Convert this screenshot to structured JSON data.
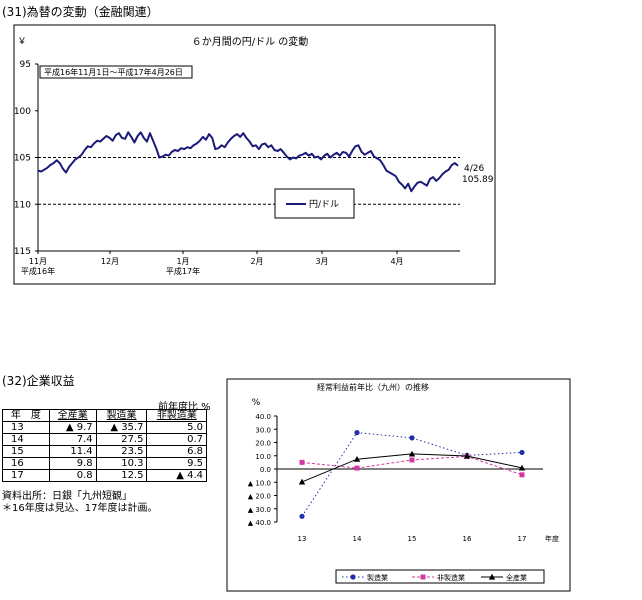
{
  "section1": {
    "title": "(31)為替の変動（金融関連）",
    "chart_data": {
      "type": "line",
      "title": "６か月間の円/ドル の変動",
      "yunit": "￥",
      "period_label": "平成16年11月1日～平成17年4月26日",
      "y_ticks": [
        "95",
        "100",
        "105",
        "110",
        "115"
      ],
      "ylim": [
        95,
        115
      ],
      "y_reversed": true,
      "gridlines": [
        105,
        110
      ],
      "x_ticks": [
        "11月",
        "12月",
        "1月",
        "2月",
        "3月",
        "4月"
      ],
      "x_subticks": {
        "11月": "平成16年",
        "1月": "平成17年"
      },
      "legend": "円/ドル",
      "end_annotation": {
        "date": "4/26",
        "value": "105.89"
      },
      "series": [
        {
          "name": "円/ドル",
          "values": [
            106.4,
            106.5,
            106.3,
            106.1,
            105.8,
            105.6,
            105.3,
            105.6,
            106.2,
            106.6,
            106.0,
            105.6,
            105.2,
            105.0,
            104.7,
            104.2,
            103.8,
            103.9,
            103.5,
            103.2,
            103.3,
            103.0,
            102.7,
            102.9,
            103.2,
            102.6,
            102.4,
            102.9,
            103.0,
            102.3,
            102.8,
            103.4,
            102.7,
            102.3,
            102.9,
            103.3,
            102.4,
            103.2,
            104.0,
            105.0,
            104.9,
            104.7,
            104.8,
            104.4,
            104.2,
            104.3,
            104.0,
            104.1,
            103.9,
            104.0,
            103.7,
            103.5,
            103.2,
            102.8,
            103.1,
            102.5,
            102.9,
            104.1,
            104.0,
            103.7,
            103.9,
            103.4,
            103.0,
            102.7,
            102.5,
            102.8,
            102.4,
            102.9,
            103.3,
            103.8,
            103.7,
            104.1,
            103.6,
            103.5,
            103.9,
            103.7,
            104.2,
            104.3,
            104.1,
            104.5,
            104.9,
            105.2,
            105.0,
            105.1,
            104.8,
            104.7,
            104.5,
            104.8,
            104.6,
            105.0,
            104.9,
            105.2,
            104.8,
            104.6,
            105.0,
            104.7,
            104.5,
            104.8,
            104.4,
            104.5,
            104.9,
            104.3,
            103.8,
            103.7,
            104.4,
            104.7,
            104.5,
            104.3,
            104.9,
            105.1,
            105.3,
            105.8,
            106.4,
            106.6,
            106.8,
            107.0,
            107.6,
            107.9,
            108.3,
            107.8,
            108.6,
            108.1,
            107.7,
            107.6,
            107.8,
            108.0,
            107.3,
            107.1,
            107.5,
            107.2,
            106.8,
            106.5,
            106.3,
            105.8,
            105.6,
            105.89
          ]
        }
      ]
    }
  },
  "section2": {
    "title": "(32)企業収益",
    "table": {
      "unit_note": "前年度比 %",
      "headers": [
        "年　度",
        "全産業",
        "製造業",
        "非製造業"
      ],
      "rows": [
        [
          "13",
          "▲ 9.7",
          "▲ 35.7",
          "5.0"
        ],
        [
          "14",
          "7.4",
          "27.5",
          "0.7"
        ],
        [
          "15",
          "11.4",
          "23.5",
          "6.8"
        ],
        [
          "16",
          "9.8",
          "10.3",
          "9.5"
        ],
        [
          "17",
          "0.8",
          "12.5",
          "▲ 4.4"
        ]
      ]
    },
    "source": "資料出所：日銀「九州短観」",
    "footnote": "＊16年度は見込、17年度は計画。",
    "chart_data": {
      "type": "line",
      "title": "経常利益前年比（九州）の推移",
      "yunit": "%",
      "xlabel": "年度",
      "categories": [
        "13",
        "14",
        "15",
        "16",
        "17"
      ],
      "ylim": [
        -40,
        40
      ],
      "y_ticks": [
        "40.0",
        "30.0",
        "20.0",
        "10.0",
        "0.0",
        "▲ 10.0",
        "▲ 20.0",
        "▲ 30.0",
        "▲ 40.0"
      ],
      "series": [
        {
          "name": "製造業",
          "values": [
            -35.7,
            27.5,
            23.5,
            10.3,
            12.5
          ],
          "color": "#1f2fa8"
        },
        {
          "name": "非製造業",
          "values": [
            5.0,
            0.7,
            6.8,
            9.5,
            -4.4
          ],
          "color": "#d23aa0"
        },
        {
          "name": "全産業",
          "values": [
            -9.7,
            7.4,
            11.4,
            9.8,
            0.8
          ],
          "color": "#000000"
        }
      ]
    }
  }
}
